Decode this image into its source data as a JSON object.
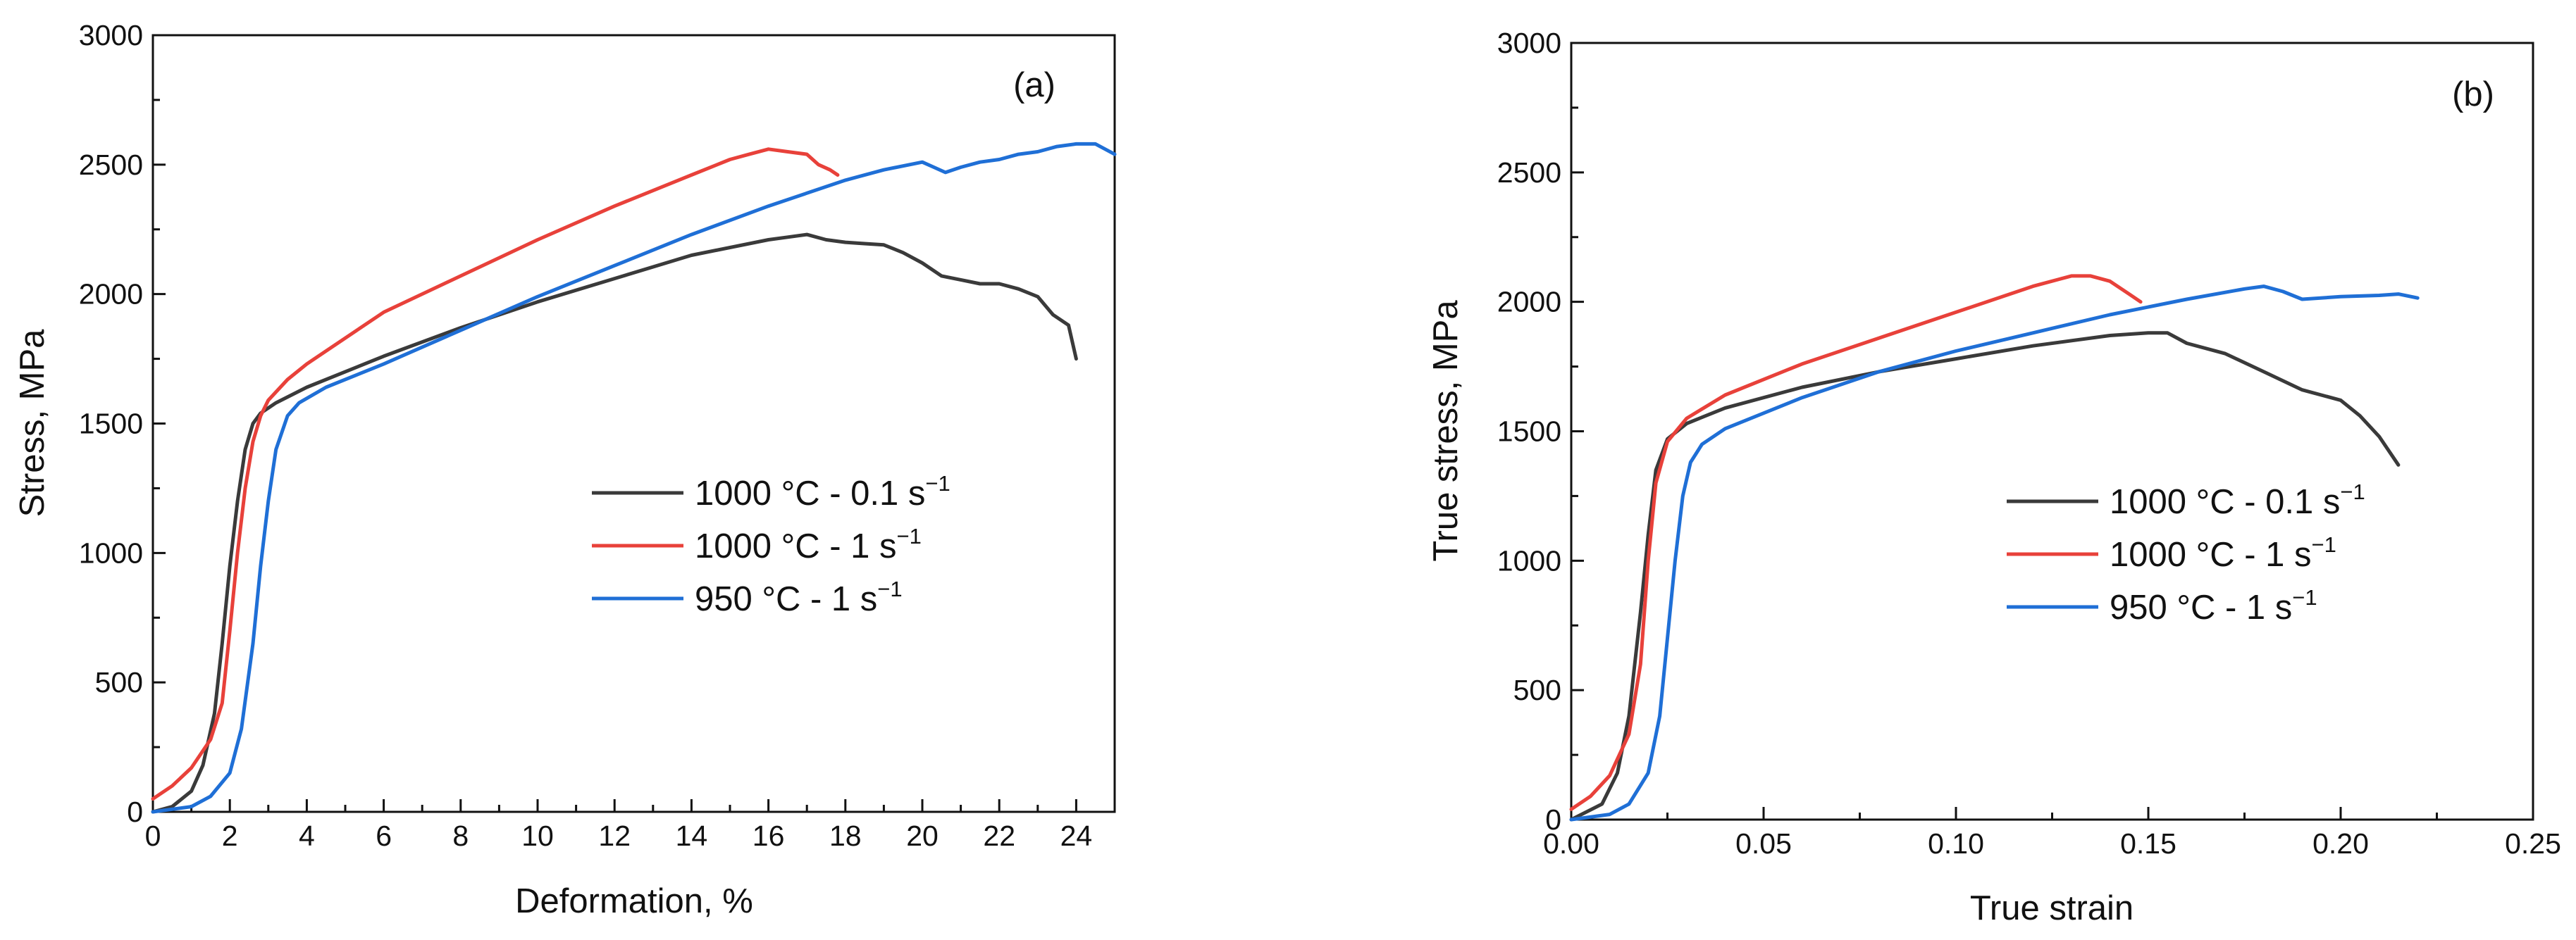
{
  "chart_data": [
    {
      "panel_label": "(a)",
      "type": "line",
      "xlabel": "Deformation, %",
      "ylabel": "Stress, MPa",
      "xlim": [
        0,
        25
      ],
      "ylim": [
        0,
        3000
      ],
      "x_ticks": [
        0,
        2,
        4,
        6,
        8,
        10,
        12,
        14,
        16,
        18,
        20,
        22,
        24
      ],
      "y_ticks": [
        0,
        500,
        1000,
        1500,
        2000,
        2500,
        3000
      ],
      "legend": {
        "position": "center-right"
      },
      "series": [
        {
          "name": "1000 °C - 0.1 s",
          "superscript": "−1",
          "color": "#3a3a3a",
          "x": [
            0,
            0.5,
            1.0,
            1.3,
            1.6,
            1.8,
            2.0,
            2.2,
            2.4,
            2.6,
            2.8,
            3.2,
            4,
            6,
            8,
            10,
            12,
            14,
            16,
            16.5,
            17,
            17.5,
            18,
            18.5,
            19,
            19.5,
            20,
            20.5,
            21,
            21.5,
            22,
            22.5,
            23,
            23.4,
            23.8,
            24.0
          ],
          "y": [
            0,
            20,
            80,
            180,
            380,
            650,
            950,
            1200,
            1400,
            1500,
            1540,
            1580,
            1640,
            1760,
            1870,
            1970,
            2060,
            2150,
            2210,
            2220,
            2230,
            2210,
            2200,
            2195,
            2190,
            2160,
            2120,
            2070,
            2055,
            2040,
            2040,
            2020,
            1990,
            1920,
            1880,
            1750
          ]
        },
        {
          "name": "1000 °C - 1 s",
          "superscript": "−1",
          "color": "#e8413a",
          "x": [
            0,
            0.5,
            1.0,
            1.5,
            1.8,
            2.0,
            2.2,
            2.4,
            2.6,
            2.8,
            3.0,
            3.5,
            4,
            6,
            8,
            10,
            12,
            14,
            15,
            15.5,
            16,
            16.5,
            17,
            17.3,
            17.6,
            17.8
          ],
          "y": [
            50,
            100,
            170,
            280,
            420,
            700,
            1000,
            1250,
            1430,
            1530,
            1590,
            1670,
            1730,
            1930,
            2070,
            2210,
            2340,
            2460,
            2520,
            2540,
            2560,
            2550,
            2540,
            2500,
            2480,
            2460
          ]
        },
        {
          "name": "950 °C - 1 s",
          "superscript": "−1",
          "color": "#1f6fd6",
          "x": [
            0,
            1.0,
            1.5,
            2.0,
            2.3,
            2.6,
            2.8,
            3.0,
            3.2,
            3.5,
            3.8,
            4.5,
            6,
            8,
            10,
            12,
            14,
            16,
            18,
            19,
            20,
            20.3,
            20.6,
            21,
            21.5,
            22,
            22.5,
            23,
            23.5,
            24,
            24.5,
            25
          ],
          "y": [
            0,
            20,
            60,
            150,
            320,
            650,
            950,
            1200,
            1400,
            1530,
            1580,
            1640,
            1730,
            1860,
            1990,
            2110,
            2230,
            2340,
            2440,
            2480,
            2510,
            2490,
            2470,
            2490,
            2510,
            2520,
            2540,
            2550,
            2570,
            2580,
            2580,
            2540
          ]
        }
      ]
    },
    {
      "panel_label": "(b)",
      "type": "line",
      "xlabel": "True strain",
      "ylabel": "True stress, MPa",
      "xlim": [
        0,
        0.25
      ],
      "ylim": [
        0,
        3000
      ],
      "x_ticks": [
        "0.00",
        "0.05",
        "0.10",
        "0.15",
        "0.20",
        "0.25"
      ],
      "y_ticks": [
        0,
        500,
        1000,
        1500,
        2000,
        2500,
        3000
      ],
      "legend": {
        "position": "center-right"
      },
      "series": [
        {
          "name": "1000 °C - 0.1 s",
          "superscript": "−1",
          "color": "#3a3a3a",
          "x": [
            0,
            0.008,
            0.012,
            0.015,
            0.018,
            0.02,
            0.022,
            0.025,
            0.03,
            0.04,
            0.06,
            0.08,
            0.1,
            0.12,
            0.14,
            0.15,
            0.155,
            0.16,
            0.17,
            0.18,
            0.19,
            0.2,
            0.205,
            0.21,
            0.215
          ],
          "y": [
            0,
            60,
            180,
            400,
            800,
            1100,
            1350,
            1470,
            1530,
            1590,
            1670,
            1730,
            1780,
            1830,
            1870,
            1880,
            1880,
            1840,
            1800,
            1730,
            1660,
            1620,
            1560,
            1480,
            1370
          ]
        },
        {
          "name": "1000 °C - 1 s",
          "superscript": "−1",
          "color": "#e8413a",
          "x": [
            0,
            0.005,
            0.01,
            0.015,
            0.018,
            0.02,
            0.022,
            0.025,
            0.03,
            0.04,
            0.06,
            0.08,
            0.1,
            0.12,
            0.13,
            0.135,
            0.14,
            0.145,
            0.148
          ],
          "y": [
            40,
            90,
            170,
            330,
            600,
            1000,
            1300,
            1460,
            1550,
            1640,
            1760,
            1860,
            1960,
            2060,
            2100,
            2100,
            2080,
            2030,
            2000
          ]
        },
        {
          "name": "950 °C - 1 s",
          "superscript": "−1",
          "color": "#1f6fd6",
          "x": [
            0,
            0.01,
            0.015,
            0.02,
            0.023,
            0.025,
            0.027,
            0.029,
            0.031,
            0.034,
            0.04,
            0.06,
            0.08,
            0.1,
            0.12,
            0.14,
            0.16,
            0.175,
            0.18,
            0.185,
            0.19,
            0.2,
            0.21,
            0.215,
            0.22
          ],
          "y": [
            0,
            20,
            60,
            180,
            400,
            700,
            1000,
            1250,
            1380,
            1450,
            1510,
            1630,
            1730,
            1810,
            1880,
            1950,
            2010,
            2050,
            2060,
            2040,
            2010,
            2020,
            2025,
            2030,
            2015
          ]
        }
      ]
    }
  ]
}
